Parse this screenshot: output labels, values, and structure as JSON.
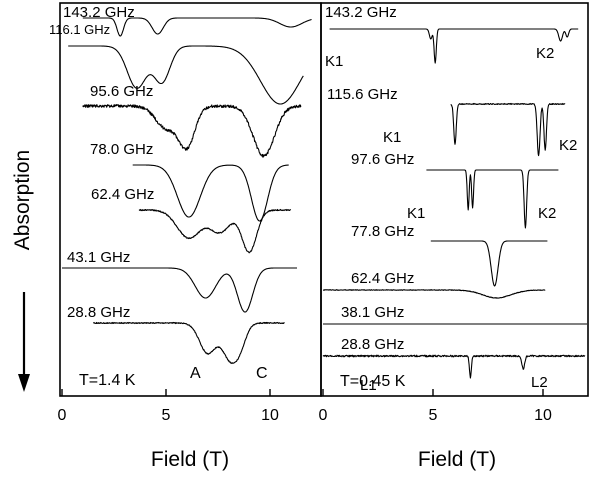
{
  "ylabel": "Absorption",
  "chart_data": [
    {
      "type": "line",
      "panel": "left",
      "xlabel": "Field (T)",
      "ylabel": "Absorption",
      "xlim": [
        0,
        12.2
      ],
      "xticks": [
        0,
        5,
        10
      ],
      "grid": false,
      "annotations": {
        "temperature": "T=1.4 K",
        "peak_a": "A",
        "peak_c": "C"
      },
      "series": [
        {
          "name": "143.2 GHz",
          "x_start": 1.0,
          "x_end": 12.0,
          "noise": 0.0,
          "dips": [
            [
              2.8,
              0.22,
              18
            ],
            [
              4.6,
              0.38,
              16
            ],
            [
              11.0,
              0.75,
              9
            ]
          ]
        },
        {
          "name": "116.1 GHz",
          "x_start": 0.3,
          "x_end": 11.6,
          "noise": 0.0,
          "dips": [
            [
              3.6,
              0.65,
              42
            ],
            [
              4.8,
              0.55,
              36
            ],
            [
              10.5,
              1.35,
              58
            ]
          ]
        },
        {
          "name": "95.6 GHz",
          "x_start": 1.0,
          "x_end": 11.5,
          "noise": 1.4,
          "dips": [
            [
              6.0,
              0.55,
              40
            ],
            [
              5.0,
              0.7,
              22
            ],
            [
              9.7,
              0.72,
              50
            ]
          ]
        },
        {
          "name": "78.0 GHz",
          "x_start": 3.4,
          "x_end": 10.9,
          "noise": 0.0,
          "dips": [
            [
              6.1,
              0.78,
              52
            ],
            [
              9.5,
              0.55,
              56
            ]
          ]
        },
        {
          "name": "62.4 GHz",
          "x_start": 3.7,
          "x_end": 11.0,
          "noise": 0.6,
          "dips": [
            [
              6.1,
              0.8,
              28
            ],
            [
              7.6,
              0.7,
              22
            ],
            [
              9.0,
              0.5,
              42
            ]
          ]
        },
        {
          "name": "43.1 GHz",
          "x_start": 0.0,
          "x_end": 11.3,
          "noise": 0.0,
          "dips": [
            [
              6.9,
              0.7,
              30
            ],
            [
              8.8,
              0.52,
              44
            ]
          ]
        },
        {
          "name": "28.8 GHz",
          "x_start": 1.5,
          "x_end": 10.7,
          "noise": 0.5,
          "dips": [
            [
              7.0,
              0.55,
              30
            ],
            [
              8.1,
              0.55,
              36
            ],
            [
              8.6,
              0.4,
              14
            ]
          ]
        }
      ]
    },
    {
      "type": "line",
      "panel": "right",
      "xlabel": "Field (T)",
      "xlim": [
        0,
        12.2
      ],
      "xticks": [
        0,
        5,
        10
      ],
      "grid": false,
      "annotations": {
        "temperature": "T=0.45 K"
      },
      "series": [
        {
          "name": "143.2 GHz",
          "x_start": 0.3,
          "x_end": 11.6,
          "noise": 0.0,
          "dips": [
            [
              4.9,
              0.09,
              10
            ],
            [
              5.1,
              0.07,
              34
            ],
            [
              10.8,
              0.12,
              12
            ],
            [
              11.1,
              0.09,
              8
            ]
          ],
          "labels": [
            "K1",
            "K2"
          ]
        },
        {
          "name": "115.6 GHz",
          "x_start": 5.8,
          "x_end": 11.0,
          "noise": 0.5,
          "dips": [
            [
              6.0,
              0.08,
              40
            ],
            [
              9.8,
              0.09,
              52
            ],
            [
              10.1,
              0.08,
              46
            ]
          ],
          "labels": [
            "K1",
            "K2"
          ]
        },
        {
          "name": "97.6 GHz",
          "x_start": 4.7,
          "x_end": 10.7,
          "noise": 0.0,
          "dips": [
            [
              6.6,
              0.06,
              40
            ],
            [
              6.8,
              0.06,
              38
            ],
            [
              9.2,
              0.08,
              58
            ]
          ],
          "labels": [
            "K1",
            "K2"
          ]
        },
        {
          "name": "77.8 GHz",
          "x_start": 4.9,
          "x_end": 10.2,
          "noise": 0.0,
          "dips": [
            [
              7.8,
              0.22,
              45
            ]
          ]
        },
        {
          "name": "62.4 GHz",
          "x_start": 0.0,
          "x_end": 10.1,
          "noise": 0.3,
          "dips": [
            [
              7.9,
              0.9,
              8
            ]
          ]
        },
        {
          "name": "38.1 GHz",
          "x_start": 0.0,
          "x_end": 12.0,
          "noise": 0.0,
          "dips": []
        },
        {
          "name": "28.8 GHz",
          "x_start": 0.0,
          "x_end": 11.9,
          "noise": 0.8,
          "dips": [
            [
              6.7,
              0.06,
              22
            ],
            [
              9.1,
              0.09,
              13
            ]
          ],
          "labels": [
            "L1",
            "L2"
          ]
        }
      ]
    }
  ]
}
